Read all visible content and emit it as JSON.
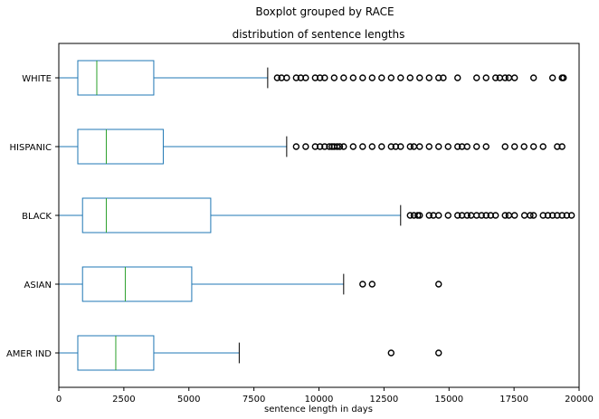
{
  "chart_data": {
    "type": "boxplot",
    "orientation": "horizontal",
    "suptitle": "Boxplot grouped by RACE",
    "title": "distribution of sentence lengths",
    "xlabel": "sentence length in days",
    "ylabel": "",
    "xlim": [
      0,
      20000
    ],
    "xticks": [
      0,
      2500,
      5000,
      7500,
      10000,
      12500,
      15000,
      17500,
      20000
    ],
    "grid": false,
    "colors": {
      "box": "#1f77b4",
      "median": "#2ca02c",
      "whisker": "#1f77b4",
      "cap": "#000000",
      "flier": "#000000"
    },
    "groups": [
      {
        "category": "AMER IND",
        "whislo": 0,
        "q1": 730,
        "median": 2190,
        "q3": 3650,
        "whishi": 6935,
        "fliers": [
          12775,
          14600
        ]
      },
      {
        "category": "ASIAN",
        "whislo": 0,
        "q1": 912,
        "median": 2555,
        "q3": 5110,
        "whishi": 10950,
        "fliers": [
          11680,
          12045,
          14600
        ]
      },
      {
        "category": "BLACK",
        "whislo": 0,
        "q1": 912,
        "median": 1825,
        "q3": 5840,
        "whishi": 13140,
        "fliers": [
          13505,
          13650,
          13800,
          13870,
          14235,
          14400,
          14600,
          14965,
          15330,
          15500,
          15695,
          15850,
          16060,
          16250,
          16425,
          16600,
          16790,
          17155,
          17300,
          17520,
          17900,
          18120,
          18250,
          18615,
          18800,
          18980,
          19160,
          19345,
          19525,
          19710
        ]
      },
      {
        "category": "HISPANIC",
        "whislo": 0,
        "q1": 730,
        "median": 1825,
        "q3": 4015,
        "whishi": 8760,
        "fliers": [
          9125,
          9490,
          9855,
          10040,
          10220,
          10400,
          10500,
          10585,
          10700,
          10800,
          10950,
          11315,
          11680,
          12045,
          12410,
          12775,
          12950,
          13140,
          13505,
          13650,
          13870,
          14235,
          14600,
          14965,
          15330,
          15500,
          15695,
          16060,
          16425,
          17155,
          17520,
          17885,
          18250,
          18615,
          19160,
          19345
        ]
      },
      {
        "category": "WHITE",
        "whislo": 0,
        "q1": 730,
        "median": 1460,
        "q3": 3650,
        "whishi": 8030,
        "fliers": [
          8395,
          8560,
          8760,
          9125,
          9300,
          9490,
          9855,
          10040,
          10220,
          10585,
          10950,
          11315,
          11680,
          12045,
          12410,
          12775,
          13140,
          13505,
          13870,
          14235,
          14600,
          14780,
          15330,
          16060,
          16425,
          16790,
          16950,
          17155,
          17300,
          17520,
          18250,
          18980,
          19345,
          19400
        ]
      }
    ]
  }
}
